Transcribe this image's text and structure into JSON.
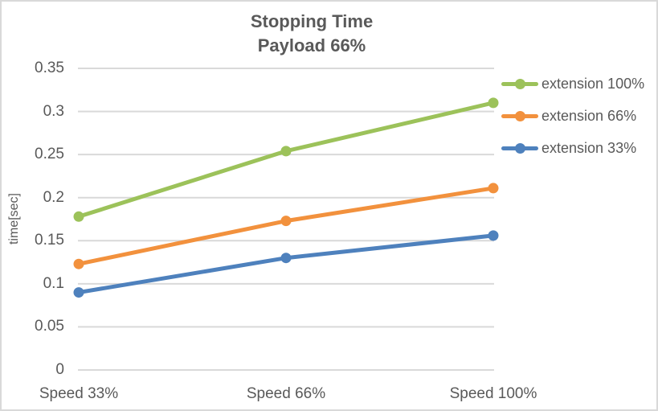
{
  "chart": {
    "title_line1": "Stopping Time",
    "title_line2": "Payload 66%"
  },
  "chart_data": {
    "type": "line",
    "title": "Stopping Time Payload 66%",
    "categories": [
      "Speed 33%",
      "Speed 66%",
      "Speed 100%"
    ],
    "series": [
      {
        "name": "extension 100%",
        "values": [
          0.178,
          0.254,
          0.31
        ],
        "color": "#9CC25A"
      },
      {
        "name": "extension 66%",
        "values": [
          0.123,
          0.173,
          0.211
        ],
        "color": "#F2913D"
      },
      {
        "name": "extension 33%",
        "values": [
          0.09,
          0.13,
          0.156
        ],
        "color": "#4E81BD"
      }
    ],
    "xlabel": "",
    "ylabel": "time[sec]",
    "ylim": [
      0,
      0.35
    ],
    "ytick_step": 0.05,
    "ytick_labels": [
      "0.35",
      "0.3",
      "0.25",
      "0.2",
      "0.15",
      "0.1",
      "0.05",
      "0"
    ],
    "grid": "horizontal",
    "legend_position": "right",
    "marker": "circle"
  },
  "colors": {
    "text": "#595959",
    "gridline": "#D9D9D9",
    "border": "#D9D9D9",
    "background": "#FFFFFF"
  }
}
